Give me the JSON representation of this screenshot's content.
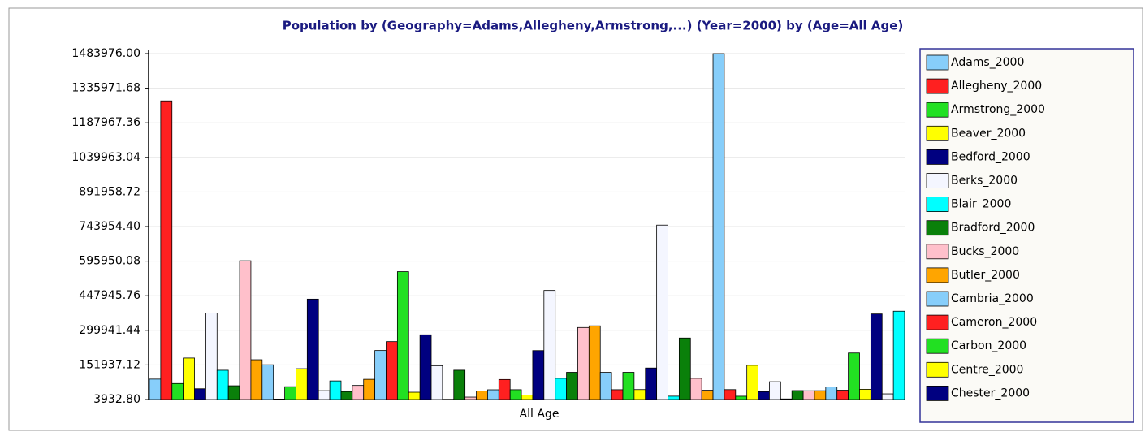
{
  "chart_data": {
    "type": "bar",
    "title": "Population by (Geography=Adams,Allegheny,Armstrong,...) (Year=2000) by (Age=All Age)",
    "categories": [
      "All Age"
    ],
    "ylim": [
      3932.8,
      1483976
    ],
    "yticks": [
      {
        "value": 3932.8,
        "label": "3932.80"
      },
      151937.12,
      299941.44,
      447945.76,
      595950.08,
      {
        "value": 743954.4,
        "label": "743954.40"
      },
      891958.72,
      1039963.04,
      1187967.36,
      1335971.68,
      {
        "value": 1483976,
        "label": "1483976.00"
      }
    ],
    "grid": true,
    "legend": "right",
    "series": [
      {
        "name": "Adams_2000",
        "color": "#87cefa",
        "values": [
          91292
        ]
      },
      {
        "name": "Allegheny_2000",
        "color": "#ff2020",
        "values": [
          1281666
        ]
      },
      {
        "name": "Armstrong_2000",
        "color": "#22e022",
        "values": [
          72392
        ]
      },
      {
        "name": "Beaver_2000",
        "color": "#ffff00",
        "values": [
          181412
        ]
      },
      {
        "name": "Bedford_2000",
        "color": "#000080",
        "values": [
          49984
        ]
      },
      {
        "name": "Berks_2000",
        "color": "#f4f6ff",
        "values": [
          373638
        ]
      },
      {
        "name": "Blair_2000",
        "color": "#00ffff",
        "values": [
          129144
        ]
      },
      {
        "name": "Bradford_2000",
        "color": "#0a800a",
        "values": [
          62761
        ]
      },
      {
        "name": "Bucks_2000",
        "color": "#ffc0cb",
        "values": [
          597635
        ]
      },
      {
        "name": "Butler_2000",
        "color": "#ffa500",
        "values": [
          174083
        ]
      },
      {
        "name": "Cambria_2000",
        "color": "#87cefa",
        "values": [
          152598
        ]
      },
      {
        "name": "Cameron_2000",
        "color": "#ff2020",
        "values": [
          5974
        ]
      },
      {
        "name": "Carbon_2000",
        "color": "#22e022",
        "values": [
          58802
        ]
      },
      {
        "name": "Centre_2000",
        "color": "#ffff00",
        "values": [
          135758
        ]
      },
      {
        "name": "Chester_2000",
        "color": "#000080",
        "values": [
          433501
        ]
      },
      {
        "name": null,
        "color": "#f4f6ff",
        "values": [
          41765
        ]
      },
      {
        "name": null,
        "color": "#00ffff",
        "values": [
          83382
        ]
      },
      {
        "name": null,
        "color": "#0a800a",
        "values": [
          37914
        ]
      },
      {
        "name": null,
        "color": "#ffc0cb",
        "values": [
          64151
        ]
      },
      {
        "name": null,
        "color": "#ffa500",
        "values": [
          90366
        ]
      },
      {
        "name": null,
        "color": "#87cefa",
        "values": [
          213674
        ]
      },
      {
        "name": null,
        "color": "#ff2020",
        "values": [
          251798
        ]
      },
      {
        "name": null,
        "color": "#22e022",
        "values": [
          550864
        ]
      },
      {
        "name": null,
        "color": "#ffff00",
        "values": [
          35112
        ]
      },
      {
        "name": null,
        "color": "#000080",
        "values": [
          280843
        ]
      },
      {
        "name": null,
        "color": "#f4f6ff",
        "values": [
          148644
        ]
      },
      {
        "name": null,
        "color": "#00ffff",
        "values": [
          4946
        ]
      },
      {
        "name": null,
        "color": "#0a800a",
        "values": [
          129313
        ]
      },
      {
        "name": null,
        "color": "#ffc0cb",
        "values": [
          14261
        ]
      },
      {
        "name": null,
        "color": "#ffa500",
        "values": [
          40672
        ]
      },
      {
        "name": null,
        "color": "#87cefa",
        "values": [
          45586
        ]
      },
      {
        "name": null,
        "color": "#ff2020",
        "values": [
          89605
        ]
      },
      {
        "name": null,
        "color": "#22e022",
        "values": [
          45932
        ]
      },
      {
        "name": null,
        "color": "#ffff00",
        "values": [
          22821
        ]
      },
      {
        "name": null,
        "color": "#000080",
        "values": [
          213295
        ]
      },
      {
        "name": null,
        "color": "#f4f6ff",
        "values": [
          470658
        ]
      },
      {
        "name": null,
        "color": "#00ffff",
        "values": [
          94643
        ]
      },
      {
        "name": null,
        "color": "#0a800a",
        "values": [
          120327
        ]
      },
      {
        "name": null,
        "color": "#ffc0cb",
        "values": [
          312090
        ]
      },
      {
        "name": null,
        "color": "#ffa500",
        "values": [
          319250
        ]
      },
      {
        "name": null,
        "color": "#87cefa",
        "values": [
          120044
        ]
      },
      {
        "name": null,
        "color": "#ff2020",
        "values": [
          45936
        ]
      },
      {
        "name": null,
        "color": "#22e022",
        "values": [
          120293
        ]
      },
      {
        "name": null,
        "color": "#ffff00",
        "values": [
          46486
        ]
      },
      {
        "name": null,
        "color": "#000080",
        "values": [
          138687
        ]
      },
      {
        "name": null,
        "color": "#f4f6ff",
        "values": [
          750097
        ]
      },
      {
        "name": null,
        "color": "#00ffff",
        "values": [
          18236
        ]
      },
      {
        "name": null,
        "color": "#0a800a",
        "values": [
          267066
        ]
      },
      {
        "name": null,
        "color": "#ffc0cb",
        "values": [
          94556
        ]
      },
      {
        "name": null,
        "color": "#ffa500",
        "values": [
          43602
        ]
      },
      {
        "name": null,
        "color": "#87cefa",
        "values": [
          1483976
        ]
      },
      {
        "name": null,
        "color": "#ff2020",
        "values": [
          46302
        ]
      },
      {
        "name": null,
        "color": "#22e022",
        "values": [
          18080
        ]
      },
      {
        "name": null,
        "color": "#ffff00",
        "values": [
          150336
        ]
      },
      {
        "name": null,
        "color": "#000080",
        "values": [
          37546
        ]
      },
      {
        "name": null,
        "color": "#f4f6ff",
        "values": [
          80023
        ]
      },
      {
        "name": null,
        "color": "#00ffff",
        "values": [
          6556
        ]
      },
      {
        "name": null,
        "color": "#0a800a",
        "values": [
          42238
        ]
      },
      {
        "name": null,
        "color": "#ffc0cb",
        "values": [
          41373
        ]
      },
      {
        "name": null,
        "color": "#ffa500",
        "values": [
          41624
        ]
      },
      {
        "name": null,
        "color": "#87cefa",
        "values": [
          57565
        ]
      },
      {
        "name": null,
        "color": "#ff2020",
        "values": [
          43863
        ]
      },
      {
        "name": null,
        "color": "#22e022",
        "values": [
          202897
        ]
      },
      {
        "name": null,
        "color": "#ffff00",
        "values": [
          47722
        ]
      },
      {
        "name": null,
        "color": "#000080",
        "values": [
          369993
        ]
      },
      {
        "name": null,
        "color": "#f4f6ff",
        "values": [
          28080
        ]
      },
      {
        "name": null,
        "color": "#00ffff",
        "values": [
          381751
        ]
      }
    ]
  }
}
